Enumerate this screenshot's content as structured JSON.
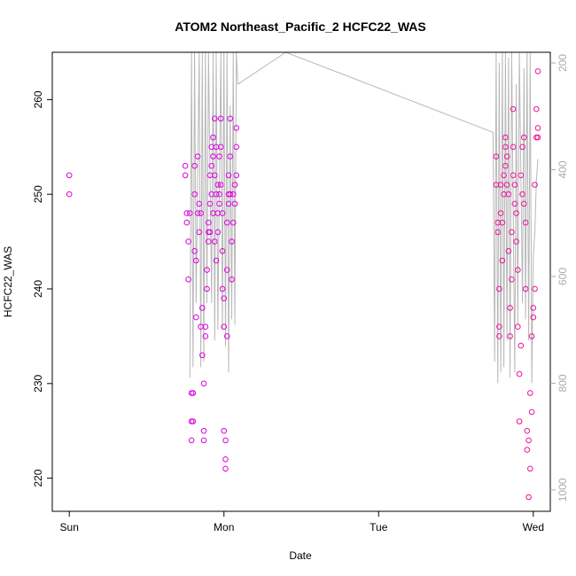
{
  "chart_data": {
    "type": "scatter",
    "title": "ATOM2 Northeast_Pacific_2 HCFC22_WAS",
    "xlabel": "Date",
    "ylabel": "HCFC22_WAS",
    "x_ticks": [
      "Sun",
      "Mon",
      "Tue",
      "Wed"
    ],
    "x_tick_days": [
      0,
      1,
      2,
      3
    ],
    "xlim_days": [
      -0.11,
      3.11
    ],
    "ylim": [
      216.5,
      265
    ],
    "y_ticks": [
      220,
      230,
      240,
      250,
      260
    ],
    "y2_label": "",
    "y2_ticks": [
      200,
      400,
      600,
      800,
      1000
    ],
    "y2lim": [
      1040,
      180
    ],
    "grid": false,
    "colors": {
      "points": "#dd00dd",
      "points_alt": "#ee1199",
      "pressure_line": "#b8b8b8",
      "axis": "#000000",
      "y2_axis": "#aaaaaa"
    },
    "series": [
      {
        "color": "#dd00dd",
        "points": [
          [
            0.0,
            252
          ],
          [
            0.0,
            250
          ],
          [
            0.75,
            253
          ],
          [
            0.75,
            252
          ],
          [
            0.76,
            248
          ],
          [
            0.76,
            247
          ],
          [
            0.77,
            245
          ],
          [
            0.77,
            241
          ],
          [
            0.78,
            248
          ],
          [
            0.79,
            229
          ],
          [
            0.79,
            226
          ],
          [
            0.79,
            224
          ],
          [
            0.8,
            229
          ],
          [
            0.8,
            226
          ],
          [
            0.81,
            250
          ],
          [
            0.81,
            253
          ],
          [
            0.81,
            244
          ],
          [
            0.82,
            243
          ],
          [
            0.82,
            237
          ],
          [
            0.83,
            254
          ],
          [
            0.83,
            248
          ],
          [
            0.84,
            249
          ],
          [
            0.84,
            246
          ],
          [
            0.85,
            248
          ],
          [
            0.85,
            236
          ],
          [
            0.86,
            238
          ],
          [
            0.86,
            233
          ],
          [
            0.87,
            225
          ],
          [
            0.87,
            224
          ],
          [
            0.87,
            230
          ],
          [
            0.88,
            236
          ],
          [
            0.88,
            235
          ],
          [
            0.89,
            242
          ],
          [
            0.89,
            240
          ],
          [
            0.9,
            246
          ],
          [
            0.9,
            245
          ],
          [
            0.9,
            247
          ],
          [
            0.91,
            249
          ],
          [
            0.91,
            252
          ],
          [
            0.91,
            246
          ],
          [
            0.92,
            255
          ],
          [
            0.92,
            250
          ],
          [
            0.92,
            253
          ],
          [
            0.93,
            254
          ],
          [
            0.93,
            256
          ],
          [
            0.93,
            248
          ],
          [
            0.94,
            258
          ],
          [
            0.94,
            252
          ],
          [
            0.94,
            245
          ],
          [
            0.95,
            250
          ],
          [
            0.95,
            255
          ],
          [
            0.95,
            243
          ],
          [
            0.96,
            246
          ],
          [
            0.96,
            251
          ],
          [
            0.96,
            248
          ],
          [
            0.97,
            254
          ],
          [
            0.97,
            249
          ],
          [
            0.97,
            250
          ],
          [
            0.98,
            258
          ],
          [
            0.98,
            255
          ],
          [
            0.98,
            251
          ],
          [
            0.99,
            244
          ],
          [
            0.99,
            240
          ],
          [
            0.99,
            248
          ],
          [
            1.0,
            239
          ],
          [
            1.0,
            236
          ],
          [
            1.0,
            225
          ],
          [
            1.01,
            222
          ],
          [
            1.01,
            221
          ],
          [
            1.01,
            224
          ],
          [
            1.02,
            235
          ],
          [
            1.02,
            242
          ],
          [
            1.02,
            247
          ],
          [
            1.03,
            250
          ],
          [
            1.03,
            252
          ],
          [
            1.03,
            249
          ],
          [
            1.04,
            258
          ],
          [
            1.04,
            254
          ],
          [
            1.04,
            250
          ],
          [
            1.05,
            245
          ],
          [
            1.05,
            241
          ],
          [
            1.06,
            250
          ],
          [
            1.06,
            247
          ],
          [
            1.07,
            249
          ],
          [
            1.07,
            251
          ],
          [
            1.08,
            255
          ],
          [
            1.08,
            257
          ],
          [
            1.08,
            252
          ]
        ]
      },
      {
        "color": "#ee1199",
        "points": [
          [
            2.76,
            254
          ],
          [
            2.76,
            251
          ],
          [
            2.77,
            247
          ],
          [
            2.77,
            246
          ],
          [
            2.78,
            240
          ],
          [
            2.78,
            236
          ],
          [
            2.78,
            235
          ],
          [
            2.79,
            251
          ],
          [
            2.79,
            248
          ],
          [
            2.8,
            247
          ],
          [
            2.8,
            243
          ],
          [
            2.81,
            250
          ],
          [
            2.81,
            252
          ],
          [
            2.82,
            255
          ],
          [
            2.82,
            256
          ],
          [
            2.82,
            253
          ],
          [
            2.83,
            254
          ],
          [
            2.83,
            251
          ],
          [
            2.84,
            250
          ],
          [
            2.84,
            244
          ],
          [
            2.85,
            238
          ],
          [
            2.85,
            235
          ],
          [
            2.86,
            241
          ],
          [
            2.86,
            246
          ],
          [
            2.87,
            259
          ],
          [
            2.87,
            255
          ],
          [
            2.87,
            252
          ],
          [
            2.88,
            251
          ],
          [
            2.88,
            249
          ],
          [
            2.89,
            248
          ],
          [
            2.89,
            245
          ],
          [
            2.9,
            242
          ],
          [
            2.9,
            236
          ],
          [
            2.91,
            226
          ],
          [
            2.91,
            231
          ],
          [
            2.92,
            234
          ],
          [
            2.92,
            252
          ],
          [
            2.93,
            255
          ],
          [
            2.93,
            250
          ],
          [
            2.94,
            256
          ],
          [
            2.94,
            249
          ],
          [
            2.95,
            247
          ],
          [
            2.95,
            240
          ],
          [
            2.96,
            225
          ],
          [
            2.96,
            223
          ],
          [
            2.97,
            218
          ],
          [
            2.97,
            224
          ],
          [
            2.98,
            221
          ],
          [
            2.98,
            229
          ],
          [
            2.99,
            227
          ],
          [
            2.99,
            235
          ],
          [
            3.0,
            237
          ],
          [
            3.0,
            238
          ],
          [
            3.01,
            240
          ],
          [
            3.01,
            251
          ],
          [
            3.02,
            256
          ],
          [
            3.02,
            259
          ],
          [
            3.03,
            263
          ],
          [
            3.03,
            257
          ],
          [
            3.03,
            256
          ]
        ]
      }
    ],
    "pressure_line": [
      [
        0.78,
        790
      ],
      [
        0.79,
        180
      ],
      [
        0.8,
        770
      ],
      [
        0.81,
        180
      ],
      [
        0.82,
        650
      ],
      [
        0.84,
        180
      ],
      [
        0.85,
        770
      ],
      [
        0.86,
        180
      ],
      [
        0.87,
        760
      ],
      [
        0.88,
        180
      ],
      [
        0.89,
        650
      ],
      [
        0.9,
        180
      ],
      [
        0.92,
        650
      ],
      [
        0.93,
        180
      ],
      [
        0.94,
        720
      ],
      [
        0.95,
        180
      ],
      [
        0.96,
        700
      ],
      [
        0.98,
        180
      ],
      [
        0.99,
        700
      ],
      [
        1.0,
        180
      ],
      [
        1.01,
        730
      ],
      [
        1.02,
        180
      ],
      [
        1.03,
        780
      ],
      [
        1.04,
        280
      ],
      [
        1.05,
        680
      ],
      [
        1.06,
        180
      ],
      [
        1.07,
        690
      ],
      [
        1.08,
        180
      ],
      [
        1.09,
        240
      ],
      [
        1.4,
        180
      ],
      [
        2.74,
        330
      ],
      [
        2.75,
        760
      ],
      [
        2.76,
        180
      ],
      [
        2.77,
        800
      ],
      [
        2.78,
        200
      ],
      [
        2.79,
        780
      ],
      [
        2.8,
        180
      ],
      [
        2.81,
        770
      ],
      [
        2.82,
        180
      ],
      [
        2.83,
        720
      ],
      [
        2.84,
        190
      ],
      [
        2.85,
        790
      ],
      [
        2.86,
        180
      ],
      [
        2.88,
        780
      ],
      [
        2.89,
        240
      ],
      [
        2.9,
        690
      ],
      [
        2.91,
        180
      ],
      [
        2.93,
        650
      ],
      [
        2.94,
        210
      ],
      [
        2.95,
        680
      ],
      [
        2.96,
        180
      ],
      [
        2.97,
        720
      ],
      [
        2.98,
        180
      ],
      [
        2.99,
        800
      ],
      [
        3.0,
        560
      ],
      [
        3.01,
        520
      ],
      [
        3.02,
        420
      ],
      [
        3.03,
        380
      ]
    ]
  }
}
